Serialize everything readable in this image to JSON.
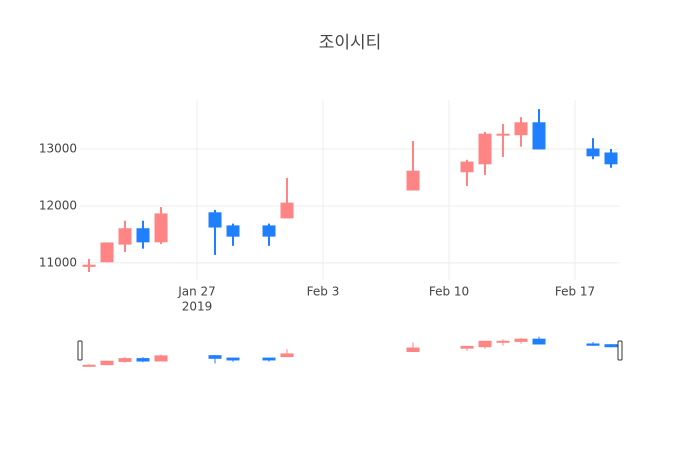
{
  "chart_data": {
    "type": "candlestick",
    "title": "조이시티",
    "increasing_color": "#ff8585",
    "decreasing_color": "#1f7fff",
    "grid": true,
    "rangeslider": true,
    "x": [
      "2019-01-21",
      "2019-01-22",
      "2019-01-23",
      "2019-01-24",
      "2019-01-25",
      "2019-01-28",
      "2019-01-29",
      "2019-01-31",
      "2019-02-01",
      "2019-02-08",
      "2019-02-11",
      "2019-02-12",
      "2019-02-13",
      "2019-02-14",
      "2019-02-15",
      "2019-02-18",
      "2019-02-19"
    ],
    "open": [
      10940,
      11020,
      11330,
      11600,
      11370,
      11880,
      11650,
      11650,
      11790,
      12280,
      12600,
      12740,
      13250,
      13250,
      13460,
      13000,
      12930
    ],
    "high": [
      11070,
      11360,
      11740,
      11740,
      11980,
      11930,
      11690,
      11690,
      12490,
      13140,
      12810,
      13300,
      13440,
      13560,
      13700,
      13190,
      13000
    ],
    "low": [
      10840,
      11010,
      11190,
      11250,
      11330,
      11140,
      11300,
      11300,
      11790,
      12280,
      12350,
      12540,
      12860,
      13040,
      13000,
      12820,
      12670
    ],
    "close": [
      10960,
      11350,
      11600,
      11370,
      11860,
      11630,
      11470,
      11470,
      12050,
      12610,
      12770,
      13260,
      13260,
      13460,
      13000,
      12880,
      12740
    ],
    "xlim": [
      "2019-01-20T12:00Z",
      "2019-02-19T12:00Z"
    ],
    "xticks": [
      {
        "value": "2019-01-27",
        "label": "Jan 27"
      },
      {
        "value": "2019-02-03",
        "label": "Feb 3"
      },
      {
        "value": "2019-02-10",
        "label": "Feb 10"
      },
      {
        "value": "2019-02-17",
        "label": "Feb 17"
      }
    ],
    "xtick_year": "2019",
    "ylim": [
      10700,
      13860
    ],
    "yticks": [
      11000,
      12000,
      13000
    ]
  }
}
